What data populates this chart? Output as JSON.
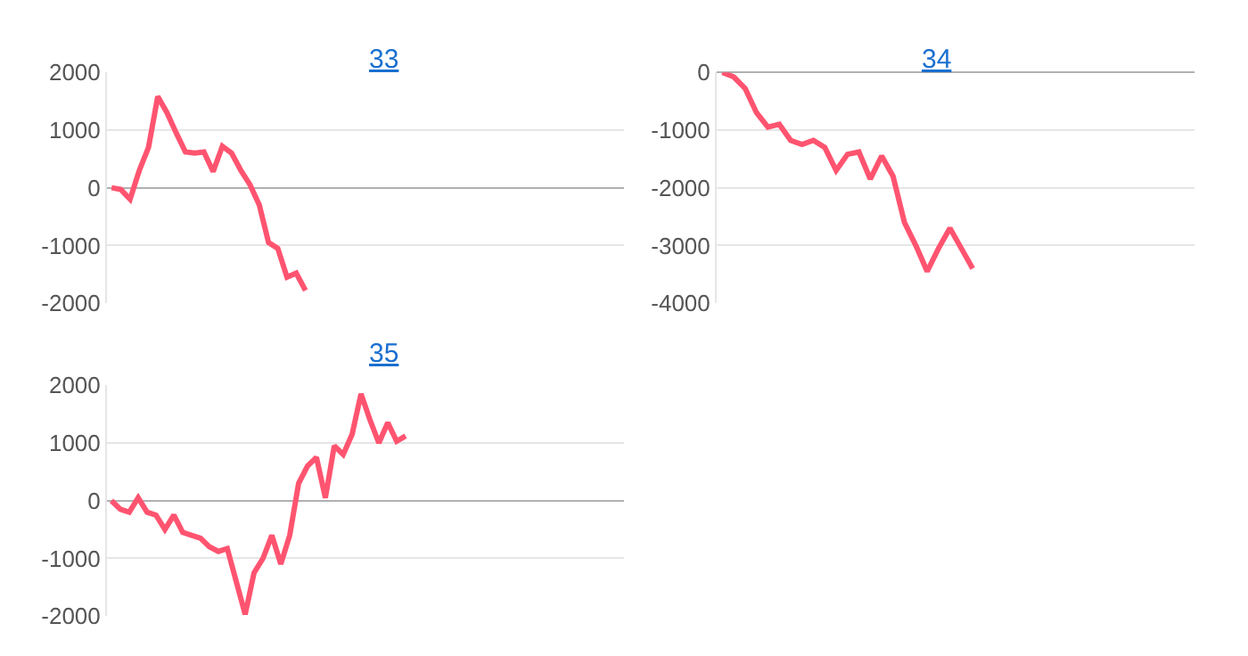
{
  "chart_data": [
    {
      "type": "line",
      "title": "33",
      "tick_labels": "y",
      "grid": "y",
      "marker": "none",
      "line_style": "solid",
      "categories": [
        null,
        null,
        null,
        null,
        null,
        null,
        null,
        null,
        null,
        null,
        null,
        null,
        null,
        null,
        null,
        null,
        null,
        null,
        null,
        null,
        null,
        null,
        null,
        null,
        null,
        null,
        null,
        null,
        null,
        null,
        null,
        null,
        null,
        null,
        null,
        null,
        null,
        null,
        null,
        null,
        null,
        null,
        null,
        null,
        null,
        null,
        null,
        null,
        null,
        null,
        null,
        null,
        null,
        null,
        null,
        null
      ],
      "series": [
        {
          "color": "#ff5470",
          "values": [
            0,
            -30,
            -200,
            300,
            700,
            1580,
            1300,
            950,
            620,
            600,
            620,
            280,
            720,
            600,
            300,
            50,
            -300,
            -950,
            -1050,
            -1550,
            -1480,
            -1780,
            null,
            null,
            null,
            null,
            null,
            null,
            null,
            null,
            null,
            null,
            null,
            null,
            null,
            null,
            null,
            null,
            null,
            null,
            null,
            null,
            null,
            null,
            null,
            null,
            null,
            null,
            null,
            null,
            null,
            null,
            null,
            null,
            null,
            null
          ]
        }
      ],
      "ylim": [
        -2000,
        2000
      ],
      "yticks": [
        -2000,
        -1000,
        0,
        1000,
        2000
      ]
    },
    {
      "type": "line",
      "title": "34",
      "tick_labels": "y",
      "grid": "y",
      "marker": "none",
      "line_style": "solid",
      "categories": [
        null,
        null,
        null,
        null,
        null,
        null,
        null,
        null,
        null,
        null,
        null,
        null,
        null,
        null,
        null,
        null,
        null,
        null,
        null,
        null,
        null,
        null,
        null,
        null,
        null,
        null,
        null,
        null,
        null,
        null,
        null,
        null,
        null,
        null,
        null,
        null,
        null,
        null,
        null,
        null,
        null,
        null
      ],
      "series": [
        {
          "color": "#ff5470",
          "values": [
            0,
            -80,
            -280,
            -700,
            -950,
            -900,
            -1180,
            -1250,
            -1180,
            -1300,
            -1700,
            -1420,
            -1380,
            -1850,
            -1450,
            -1800,
            -2600,
            -3000,
            -3450,
            -3050,
            -2700,
            -3050,
            -3400,
            null,
            null,
            null,
            null,
            null,
            null,
            null,
            null,
            null,
            null,
            null,
            null,
            null,
            null,
            null,
            null,
            null,
            null,
            null
          ]
        }
      ],
      "ylim": [
        -4000,
        0
      ],
      "yticks": [
        -4000,
        -3000,
        -2000,
        -1000,
        0
      ]
    },
    {
      "type": "line",
      "title": "35",
      "tick_labels": "y",
      "grid": "y",
      "marker": "none",
      "line_style": "solid",
      "categories": [
        null,
        null,
        null,
        null,
        null,
        null,
        null,
        null,
        null,
        null,
        null,
        null,
        null,
        null,
        null,
        null,
        null,
        null,
        null,
        null,
        null,
        null,
        null,
        null,
        null,
        null,
        null,
        null,
        null,
        null,
        null,
        null,
        null,
        null,
        null,
        null,
        null,
        null,
        null,
        null,
        null,
        null,
        null,
        null,
        null,
        null,
        null,
        null,
        null,
        null,
        null,
        null,
        null,
        null,
        null,
        null,
        null,
        null
      ],
      "series": [
        {
          "color": "#ff5470",
          "values": [
            0,
            -150,
            -200,
            50,
            -200,
            -250,
            -500,
            -250,
            -550,
            -600,
            -650,
            -800,
            -880,
            -830,
            -1400,
            -1970,
            -1250,
            -1000,
            -600,
            -1100,
            -600,
            300,
            600,
            750,
            50,
            950,
            800,
            1150,
            1850,
            1400,
            1000,
            1350,
            1030,
            1120,
            null,
            null,
            null,
            null,
            null,
            null,
            null,
            null,
            null,
            null,
            null,
            null,
            null,
            null,
            null,
            null,
            null,
            null,
            null,
            null,
            null,
            null,
            null,
            null
          ]
        }
      ],
      "ylim": [
        -2000,
        2000
      ],
      "yticks": [
        -2000,
        -1000,
        0,
        1000,
        2000
      ]
    }
  ]
}
